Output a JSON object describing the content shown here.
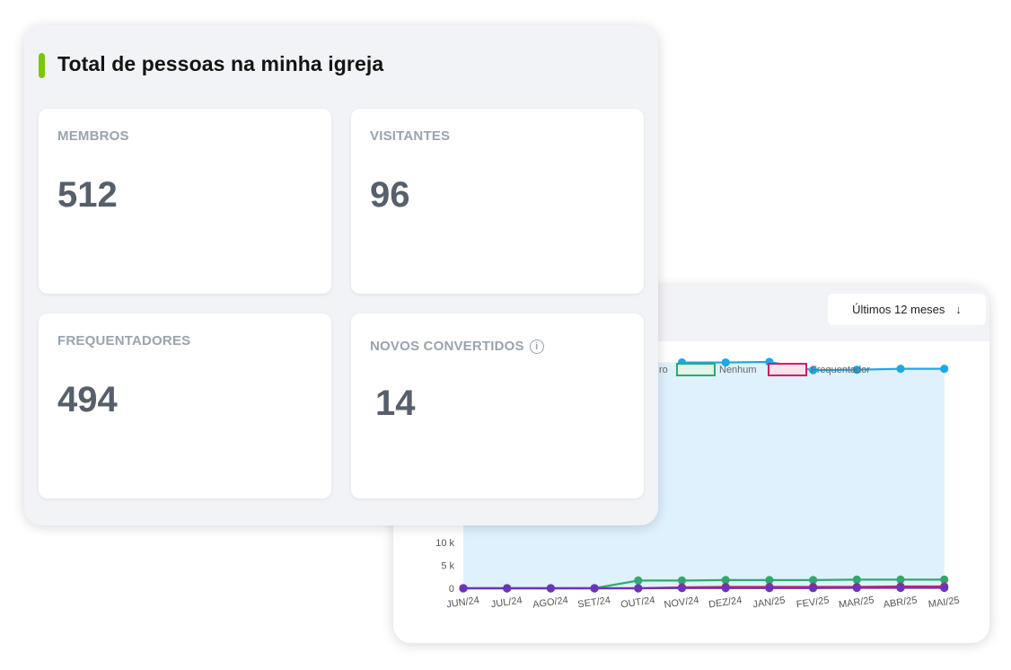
{
  "summary": {
    "title": "Total de pessoas na minha igreja",
    "accent_color": "#7ac70c",
    "cards": [
      {
        "label": "MEMBROS",
        "value": "512"
      },
      {
        "label": "VISITANTES",
        "value": "96"
      },
      {
        "label": "FREQUENTADORES",
        "value": "494"
      },
      {
        "label": "NOVOS CONVERTIDOS",
        "value": "14",
        "icon": "info-icon"
      }
    ]
  },
  "chart_panel": {
    "period_label": "Últimos 12 meses",
    "period_icon": "arrow-down-icon"
  },
  "chart_data": {
    "type": "area",
    "categories": [
      "JUN/24",
      "JUL/24",
      "AGO/24",
      "SET/24",
      "OUT/24",
      "NOV/24",
      "DEZ/24",
      "JAN/25",
      "FEV/25",
      "MAR/25",
      "ABR/25",
      "MAI/25"
    ],
    "y_tick_labels": [
      "0",
      "5 k",
      "10 k"
    ],
    "legend_visible": [
      "ro",
      "Nenhum",
      "Frequentador"
    ],
    "series": [
      {
        "color": "#1ea7e8",
        "fill": "#dff1fc",
        "values": [
          null,
          null,
          null,
          null,
          null,
          49500,
          49500,
          49600,
          47800,
          47900,
          48100,
          48100
        ]
      },
      {
        "name": "Nenhum",
        "color": "#2eaa6e",
        "values": [
          0,
          0,
          0,
          0,
          1700,
          1700,
          1800,
          1800,
          1800,
          1900,
          1900,
          1900
        ]
      },
      {
        "name": "Frequentador",
        "color": "#d81b60",
        "values": [
          0,
          0,
          0,
          0,
          0,
          200,
          300,
          300,
          300,
          300,
          400,
          400
        ]
      },
      {
        "color": "#6a35b8",
        "values": [
          0,
          0,
          0,
          0,
          0,
          50,
          50,
          50,
          50,
          100,
          100,
          100
        ]
      }
    ]
  }
}
